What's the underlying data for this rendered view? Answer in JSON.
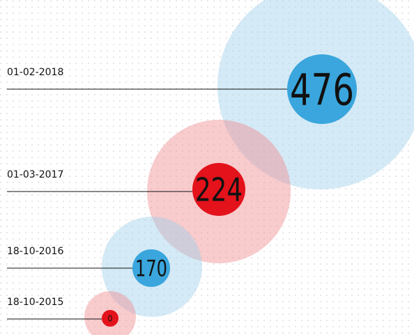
{
  "items": [
    {
      "date": "01-02-2018",
      "value": 476
    },
    {
      "date": "01-03-2017",
      "value": 224
    },
    {
      "date": "18-10-2016",
      "value": 170
    },
    {
      "date": "18-10-2015",
      "value": 0
    }
  ]
}
